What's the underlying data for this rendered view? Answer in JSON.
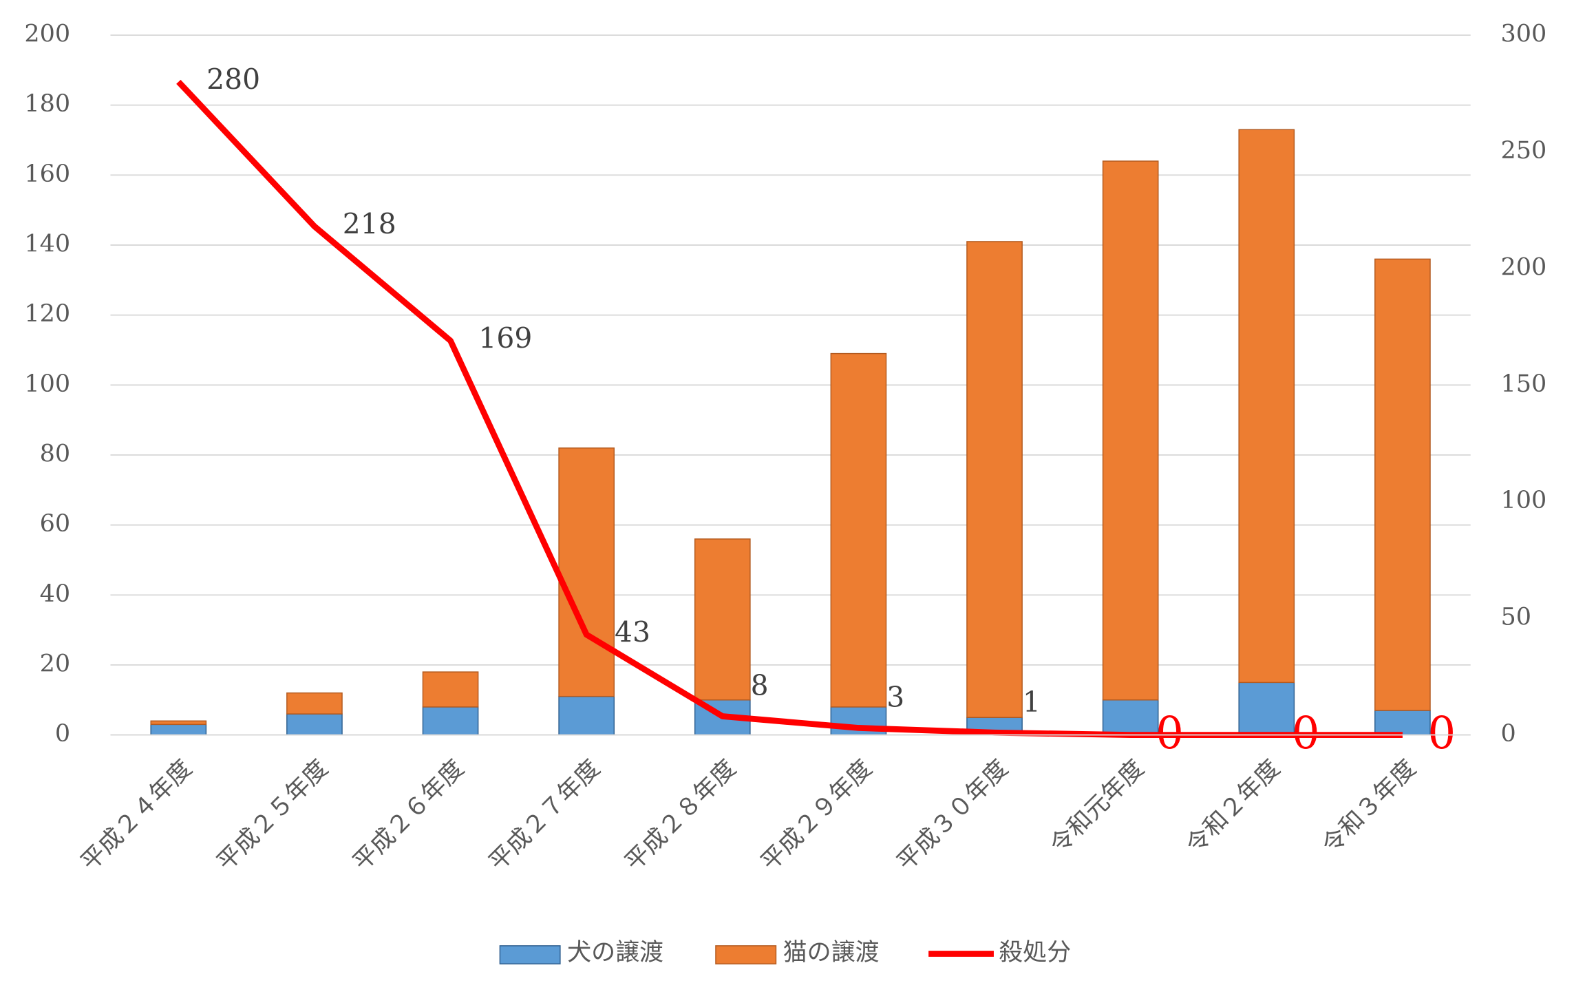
{
  "chart_data": {
    "type": "bar-line",
    "categories": [
      "平成２４年度",
      "平成２５年度",
      "平成２６年度",
      "平成２７年度",
      "平成２８年度",
      "平成２９年度",
      "平成３０年度",
      "令和元年度",
      "令和２年度",
      "令和３年度"
    ],
    "series": [
      {
        "name": "犬の譲渡",
        "color": "#5b9bd5",
        "type": "bar",
        "values": [
          3,
          6,
          8,
          11,
          10,
          8,
          5,
          10,
          15,
          7
        ]
      },
      {
        "name": "猫の譲渡",
        "color": "#ed7d31",
        "type": "bar",
        "values": [
          1,
          6,
          10,
          71,
          46,
          101,
          136,
          154,
          158,
          129
        ]
      },
      {
        "name": "殺処分",
        "color": "#ff0000",
        "type": "line",
        "axis": "y2",
        "values": [
          280,
          218,
          169,
          43,
          8,
          3,
          1,
          0,
          0,
          0
        ]
      }
    ],
    "ylim": [
      0,
      200
    ],
    "yticks": [
      0,
      20,
      40,
      60,
      80,
      100,
      120,
      140,
      160,
      180,
      200
    ],
    "y2lim": [
      0,
      300
    ],
    "y2ticks": [
      0,
      50,
      100,
      150,
      200,
      250,
      300
    ],
    "grid": true,
    "legend": "bottom"
  }
}
